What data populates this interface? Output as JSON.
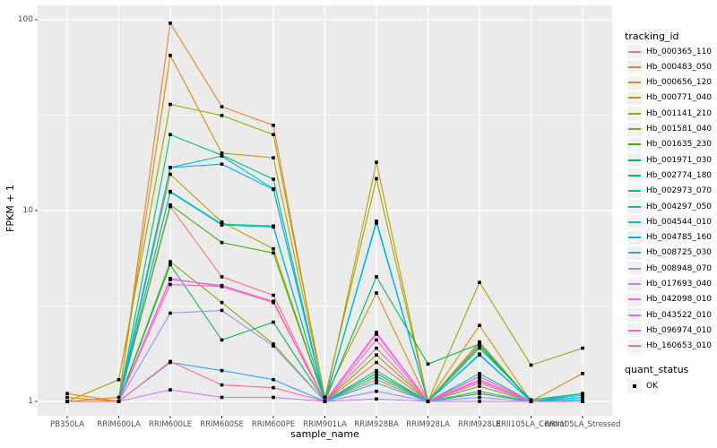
{
  "figure": {
    "y_axis_title": "FPKM + 1",
    "x_axis_title": "sample_name"
  },
  "legend": {
    "tracking_title": "tracking_id",
    "quant_title": "quant_status",
    "quant_items": [
      {
        "label": "OK",
        "shape": "black-square"
      }
    ]
  },
  "colors": {
    "panel_background": "#EBEBEB",
    "gridline": "#FFFFFF",
    "axis_text": "#4D4D4D",
    "tick_mark": "#333333",
    "point": "#000000",
    "legend_key_background": "#F2F2F2"
  },
  "chart_data": {
    "type": "line",
    "title": "",
    "xlabel": "sample_name",
    "ylabel": "FPKM + 1",
    "y_scale": "log10",
    "ylim": [
      1,
      100
    ],
    "y_major_ticks": [
      1,
      10,
      100
    ],
    "y_minor_ticks": [
      3.162,
      31.62
    ],
    "grid": true,
    "legend_position": "right",
    "point_shape": "filled-black-square (quant_status = OK)",
    "categories": [
      "PB350LA",
      "RRIM600LA",
      "RRIM600LE",
      "RRIM600SE",
      "RRIM600PE",
      "RRIM901LA",
      "RRIM928BA",
      "RRIM928LA",
      "RRIM928LE",
      "RRII105LA_Control",
      "RRII105LA_Stressed"
    ],
    "series": [
      {
        "name": "Hb_000365_110",
        "color": "#F8766D",
        "values": [
          1.0,
          1.0,
          10.5,
          4.5,
          3.6,
          1.0,
          1.6,
          1.0,
          1.35,
          1.0,
          1.0
        ]
      },
      {
        "name": "Hb_000483_050",
        "color": "#EA8331",
        "values": [
          1.1,
          1.0,
          96.0,
          35.0,
          28.0,
          1.0,
          1.3,
          1.0,
          2.0,
          1.0,
          1.0
        ]
      },
      {
        "name": "Hb_000656_120",
        "color": "#D89000",
        "values": [
          1.0,
          1.05,
          65.0,
          20.0,
          18.9,
          1.05,
          3.7,
          1.0,
          2.5,
          1.0,
          1.4
        ]
      },
      {
        "name": "Hb_000771_040",
        "color": "#C09B00",
        "values": [
          1.05,
          1.0,
          15.5,
          8.7,
          6.3,
          1.0,
          17.9,
          1.0,
          2.05,
          1.0,
          1.0
        ]
      },
      {
        "name": "Hb_001141_210",
        "color": "#A3A500",
        "values": [
          1.0,
          1.3,
          36.0,
          31.5,
          25.0,
          1.05,
          14.7,
          1.0,
          4.2,
          1.55,
          1.9
        ]
      },
      {
        "name": "Hb_001581_040",
        "color": "#7CAE00",
        "values": [
          1.0,
          1.0,
          5.4,
          3.3,
          2.0,
          1.0,
          1.75,
          1.0,
          1.2,
          1.0,
          1.0
        ]
      },
      {
        "name": "Hb_001635_230",
        "color": "#39B600",
        "values": [
          1.0,
          1.0,
          10.7,
          6.8,
          6.0,
          1.0,
          1.4,
          1.0,
          1.1,
          1.0,
          1.0
        ]
      },
      {
        "name": "Hb_001971_030",
        "color": "#00BB4E",
        "values": [
          1.0,
          1.0,
          5.2,
          2.1,
          2.6,
          1.0,
          4.5,
          1.57,
          2.0,
          1.0,
          1.05
        ]
      },
      {
        "name": "Hb_002774_180",
        "color": "#00BF7D",
        "values": [
          1.0,
          1.0,
          25.0,
          19.5,
          14.6,
          1.0,
          8.8,
          1.0,
          1.9,
          1.02,
          1.1
        ]
      },
      {
        "name": "Hb_002973_070",
        "color": "#00C1A3",
        "values": [
          1.0,
          1.0,
          12.6,
          8.5,
          8.3,
          1.0,
          1.45,
          1.0,
          1.95,
          1.0,
          1.08
        ]
      },
      {
        "name": "Hb_004297_050",
        "color": "#00BFC4",
        "values": [
          1.0,
          1.0,
          16.8,
          19.3,
          13.0,
          1.0,
          8.7,
          1.0,
          1.77,
          1.0,
          1.1
        ]
      },
      {
        "name": "Hb_004544_010",
        "color": "#00BAE0",
        "values": [
          1.0,
          1.0,
          12.5,
          8.4,
          8.2,
          1.0,
          1.35,
          1.0,
          1.4,
          1.0,
          1.05
        ]
      },
      {
        "name": "Hb_004785_160",
        "color": "#00B0F6",
        "values": [
          1.0,
          1.0,
          16.8,
          17.5,
          12.9,
          1.0,
          8.6,
          1.0,
          1.75,
          1.0,
          1.02
        ]
      },
      {
        "name": "Hb_008725_030",
        "color": "#35A2FF",
        "values": [
          1.0,
          1.0,
          1.6,
          1.45,
          1.3,
          1.0,
          1.25,
          1.0,
          1.13,
          1.0,
          1.0
        ]
      },
      {
        "name": "Hb_008948_070",
        "color": "#9590FF",
        "values": [
          1.0,
          1.0,
          2.9,
          3.0,
          1.95,
          1.0,
          1.13,
          1.0,
          1.05,
          1.0,
          1.0
        ]
      },
      {
        "name": "Hb_017693_040",
        "color": "#C77CFF",
        "values": [
          1.0,
          1.0,
          1.15,
          1.05,
          1.05,
          1.0,
          1.03,
          1.0,
          1.0,
          1.0,
          1.0
        ]
      },
      {
        "name": "Hb_042098_010",
        "color": "#E76BF3",
        "values": [
          1.0,
          1.0,
          4.4,
          4.0,
          3.3,
          1.0,
          2.3,
          1.0,
          1.3,
          1.0,
          1.0
        ]
      },
      {
        "name": "Hb_043522_010",
        "color": "#FA62DB",
        "values": [
          1.0,
          1.0,
          4.35,
          4.05,
          3.35,
          1.0,
          2.25,
          1.0,
          1.28,
          1.0,
          1.0
        ]
      },
      {
        "name": "Hb_096974_010",
        "color": "#FF62BC",
        "values": [
          1.0,
          1.0,
          4.1,
          4.0,
          3.3,
          1.0,
          2.1,
          1.0,
          1.25,
          1.0,
          1.0
        ]
      },
      {
        "name": "Hb_160653_010",
        "color": "#FF6A98",
        "values": [
          1.0,
          1.0,
          1.62,
          1.22,
          1.18,
          1.0,
          1.9,
          1.0,
          1.35,
          1.0,
          1.0
        ]
      }
    ]
  }
}
